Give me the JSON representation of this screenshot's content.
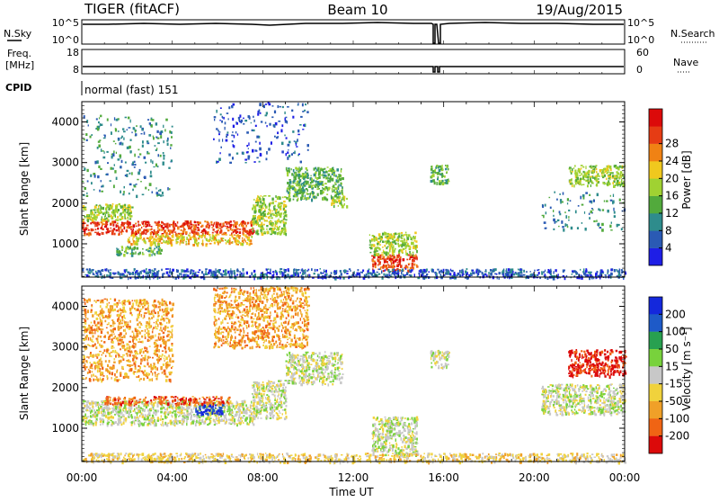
{
  "header": {
    "radar": "TIGER (fitACF)",
    "beam": "Beam 10",
    "date": "19/Aug/2015"
  },
  "noise_panel": {
    "left_label": "N.Sky",
    "right_label": "N.Search",
    "left_ticks": [
      "10^5",
      "10^0"
    ],
    "right_ticks": [
      "10^5",
      "10^0"
    ]
  },
  "freq_panel": {
    "left_label_line1": "Freq.",
    "left_label_line2": "[MHz]",
    "right_label": "Nave",
    "left_ticks": [
      "18",
      "8"
    ],
    "right_ticks": [
      "60",
      "0"
    ]
  },
  "cpid_panel": {
    "label": "CPID",
    "mode_text": "normal (fast) 151"
  },
  "x_axis": {
    "label": "Time UT",
    "ticks": [
      "00:00",
      "04:00",
      "08:00",
      "12:00",
      "16:00",
      "20:00",
      "00:00"
    ]
  },
  "chart_data": [
    {
      "type": "heatmap",
      "name": "power-panel",
      "ylabel": "Slant Range [km]",
      "yticks": [
        1000,
        2000,
        3000,
        4000
      ],
      "ylim": [
        180,
        4500
      ],
      "xlim_hours": [
        0,
        24
      ],
      "colorbar": {
        "label": "Power [dB]",
        "ticks": [
          4,
          8,
          12,
          16,
          20,
          24,
          28
        ],
        "colors": [
          "#1e1ee6",
          "#2a5ab4",
          "#2e8c8c",
          "#52aa3c",
          "#a0d232",
          "#f0c81e",
          "#f08214",
          "#e63c14",
          "#dc0a0a"
        ]
      },
      "regions": [
        {
          "t0": 0.0,
          "t1": 7.6,
          "r0": 1250,
          "r1": 1580,
          "level": 7
        },
        {
          "t0": 0.0,
          "t1": 2.2,
          "r0": 1600,
          "r1": 2000,
          "level": 4
        },
        {
          "t0": 2.0,
          "t1": 7.5,
          "r0": 1000,
          "r1": 1250,
          "level": 5
        },
        {
          "t0": 7.5,
          "t1": 9.0,
          "r0": 1250,
          "r1": 2200,
          "level": 4
        },
        {
          "t0": 1.5,
          "t1": 3.5,
          "r0": 750,
          "r1": 950,
          "level": 3
        },
        {
          "t0": 9.0,
          "t1": 11.5,
          "r0": 2100,
          "r1": 2900,
          "level": 3
        },
        {
          "t0": 11.0,
          "t1": 11.7,
          "r0": 1950,
          "r1": 2200,
          "level": 4
        },
        {
          "t0": 12.8,
          "t1": 14.8,
          "r0": 350,
          "r1": 750,
          "level": 7
        },
        {
          "t0": 12.7,
          "t1": 14.8,
          "r0": 750,
          "r1": 1300,
          "level": 4
        },
        {
          "t0": 15.4,
          "t1": 16.2,
          "r0": 2500,
          "r1": 2950,
          "level": 3
        },
        {
          "t0": 20.3,
          "t1": 24.0,
          "r0": 1350,
          "r1": 2300,
          "level": 2
        },
        {
          "t0": 21.5,
          "t1": 24.0,
          "r0": 2450,
          "r1": 2950,
          "level": 4
        },
        {
          "t0": 0.0,
          "t1": 24.0,
          "r0": 180,
          "r1": 400,
          "level": 1
        },
        {
          "t0": 5.8,
          "t1": 10.0,
          "r0": 3000,
          "r1": 4500,
          "level": 1
        },
        {
          "t0": 0.0,
          "t1": 4.0,
          "r0": 2200,
          "r1": 4200,
          "level": 2
        }
      ]
    },
    {
      "type": "heatmap",
      "name": "velocity-panel",
      "ylabel": "Slant Range [km]",
      "yticks": [
        1000,
        2000,
        3000,
        4000
      ],
      "ylim": [
        180,
        4500
      ],
      "xlim_hours": [
        0,
        24
      ],
      "colorbar": {
        "label": "Velocity [m s⁻¹]",
        "ticks": [
          200,
          100,
          50,
          15,
          -15,
          -50,
          -100,
          -200
        ],
        "colors": [
          "#1428dc",
          "#1e5ac8",
          "#28a050",
          "#78d23c",
          "#c8c8c8",
          "#f0d23c",
          "#f0a028",
          "#f06414",
          "#dc0a0a"
        ]
      },
      "regions": [
        {
          "t0": 0.0,
          "t1": 7.6,
          "r0": 1100,
          "r1": 1700,
          "level": 4
        },
        {
          "t0": 5.0,
          "t1": 6.3,
          "r0": 1350,
          "r1": 1600,
          "level": 0
        },
        {
          "t0": 1.0,
          "t1": 6.5,
          "r0": 1600,
          "r1": 1800,
          "level": 7
        },
        {
          "t0": 7.5,
          "t1": 9.0,
          "r0": 1250,
          "r1": 2200,
          "level": 4
        },
        {
          "t0": 9.0,
          "t1": 11.5,
          "r0": 2100,
          "r1": 2900,
          "level": 4
        },
        {
          "t0": 12.8,
          "t1": 14.8,
          "r0": 350,
          "r1": 1300,
          "level": 4
        },
        {
          "t0": 15.4,
          "t1": 16.2,
          "r0": 2500,
          "r1": 2950,
          "level": 4
        },
        {
          "t0": 20.3,
          "t1": 24.0,
          "r0": 1350,
          "r1": 2100,
          "level": 4
        },
        {
          "t0": 21.5,
          "t1": 24.0,
          "r0": 2300,
          "r1": 2950,
          "level": 8
        },
        {
          "t0": 0.0,
          "t1": 24.0,
          "r0": 180,
          "r1": 400,
          "level": 5
        },
        {
          "t0": 5.8,
          "t1": 10.0,
          "r0": 3000,
          "r1": 4500,
          "level": 6
        },
        {
          "t0": 0.0,
          "t1": 4.0,
          "r0": 2200,
          "r1": 4200,
          "level": 6
        }
      ]
    }
  ]
}
